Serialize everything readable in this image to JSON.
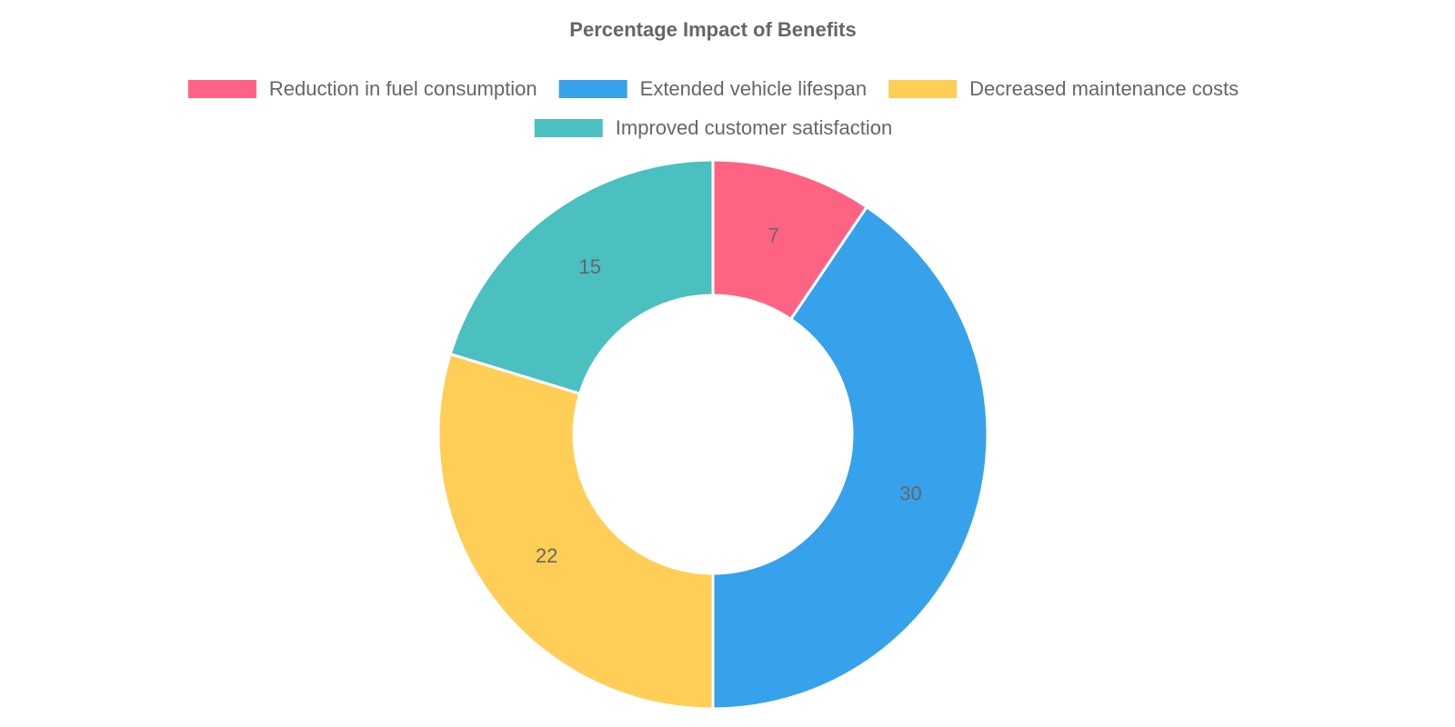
{
  "chart_data": {
    "type": "doughnut",
    "title": "Percentage Impact of Benefits",
    "categories": [
      "Reduction in fuel consumption",
      "Extended vehicle lifespan",
      "Decreased maintenance costs",
      "Improved customer satisfaction"
    ],
    "values": [
      7,
      30,
      22,
      15
    ],
    "colors": [
      "#ff6384",
      "#36a2eb",
      "#ffce56",
      "#4bc0c0"
    ],
    "legend": "top"
  }
}
